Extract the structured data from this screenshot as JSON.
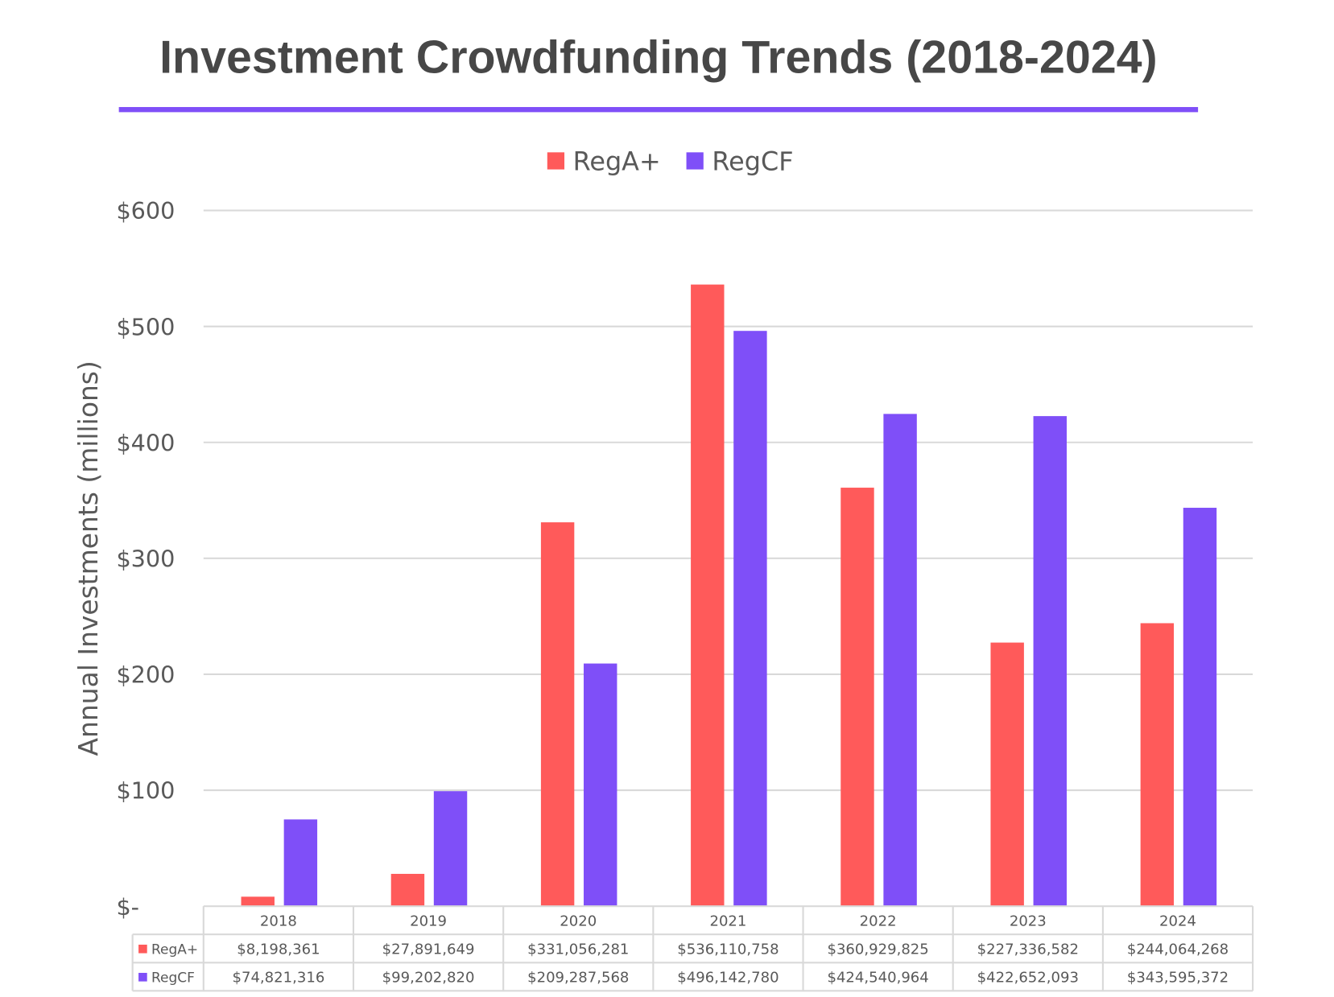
{
  "title": "Investment Crowdfunding Trends (2018-2024)",
  "accent_color": "#7f4ff8",
  "chart_data": {
    "type": "bar",
    "title": "Investment Crowdfunding Trends (2018-2024)",
    "ylabel": "Annual Investments (millions)",
    "xlabel": "",
    "ylim": [
      0,
      600
    ],
    "yticks": [
      0,
      100,
      200,
      300,
      400,
      500,
      600
    ],
    "ytick_labels": [
      "$-",
      "$100",
      "$200",
      "$300",
      "$400",
      "$500",
      "$600"
    ],
    "grid": true,
    "legend_position": "top",
    "categories": [
      "2018",
      "2019",
      "2020",
      "2021",
      "2022",
      "2023",
      "2024"
    ],
    "series": [
      {
        "name": "RegA+",
        "color": "#ff5a5a",
        "values": [
          8.198361,
          27.891649,
          331.056281,
          536.110758,
          360.929825,
          227.336582,
          244.064268
        ],
        "table_labels": [
          "$8,198,361",
          "$27,891,649",
          "$331,056,281",
          "$536,110,758",
          "$360,929,825",
          "$227,336,582",
          "$244,064,268"
        ]
      },
      {
        "name": "RegCF",
        "color": "#7f4ff8",
        "values": [
          74.821316,
          99.20282,
          209.287568,
          496.14278,
          424.540964,
          422.652093,
          343.595372
        ],
        "table_labels": [
          "$74,821,316",
          "$99,202,820",
          "$209,287,568",
          "$496,142,780",
          "$424,540,964",
          "$422,652,093",
          "$343,595,372"
        ]
      }
    ],
    "data_table": true
  }
}
